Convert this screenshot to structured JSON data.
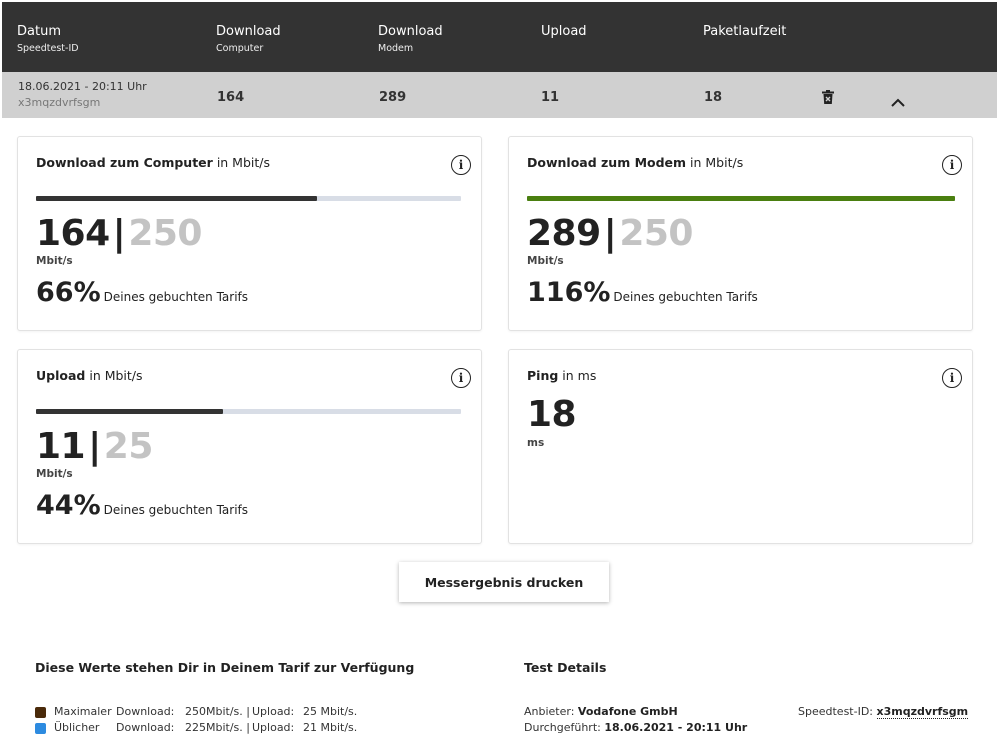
{
  "header": {
    "col1_title": "Datum",
    "col1_sub": "Speedtest-ID",
    "col2_title": "Download",
    "col2_sub": "Computer",
    "col3_title": "Download",
    "col3_sub": "Modem",
    "col4_title": "Upload",
    "col5_title": "Paketlaufzeit"
  },
  "row": {
    "date": "18.06.2021",
    "time": "- 20:11 Uhr",
    "id": "x3mqzdvrfsgm",
    "download_computer": "164",
    "download_modem": "289",
    "upload": "11",
    "ping": "18",
    "delete_icon": "trash-icon",
    "collapse_icon": "chevron-up-icon"
  },
  "cards": {
    "dl_computer": {
      "title_bold": "Download zum Computer",
      "title_unit": "in Mbit/s",
      "value": "164",
      "sep": "|",
      "max": "250",
      "unit": "Mbit/s",
      "percent": "66%",
      "percent_label": "Deines gebuchten Tarifs",
      "fill_percent": 66,
      "bar_color": "#333333"
    },
    "dl_modem": {
      "title_bold": "Download zum Modem",
      "title_unit": "in Mbit/s",
      "value": "289",
      "sep": "|",
      "max": "250",
      "unit": "Mbit/s",
      "percent": "116%",
      "percent_label": "Deines gebuchten Tarifs",
      "fill_percent": 100,
      "bar_color": "#4a7f10"
    },
    "upload": {
      "title_bold": "Upload",
      "title_unit": "in Mbit/s",
      "value": "11",
      "sep": "|",
      "max": "25",
      "unit": "Mbit/s",
      "percent": "44%",
      "percent_label": "Deines gebuchten Tarifs",
      "fill_percent": 44,
      "bar_color": "#333333"
    },
    "ping": {
      "title_bold": "Ping",
      "title_unit": "in ms",
      "value": "18",
      "unit": "ms"
    },
    "info_glyph": "i"
  },
  "print_button": "Messergebnis drucken",
  "tarif": {
    "heading": "Diese Werte stehen Dir in Deinem Tarif zur Verfügung",
    "rows": [
      {
        "name": "Maximaler",
        "dl_label": "Download:",
        "dl_value": "250Mbit/s. |",
        "ul_label": "Upload:",
        "ul_value": "25 Mbit/s.",
        "color": "#4a2a0a"
      },
      {
        "name": "Üblicher",
        "dl_label": "Download:",
        "dl_value": "225Mbit/s. |",
        "ul_label": "Upload:",
        "ul_value": "21 Mbit/s.",
        "color": "#2d8be0"
      }
    ]
  },
  "details": {
    "heading": "Test Details",
    "provider_label": "Anbieter:",
    "provider": "Vodafone GmbH",
    "done_label": "Durchgeführt:",
    "done": "18.06.2021 - 20:11 Uhr",
    "id_label": "Speedtest-ID:",
    "id": "x3mqzdvrfsgm"
  }
}
